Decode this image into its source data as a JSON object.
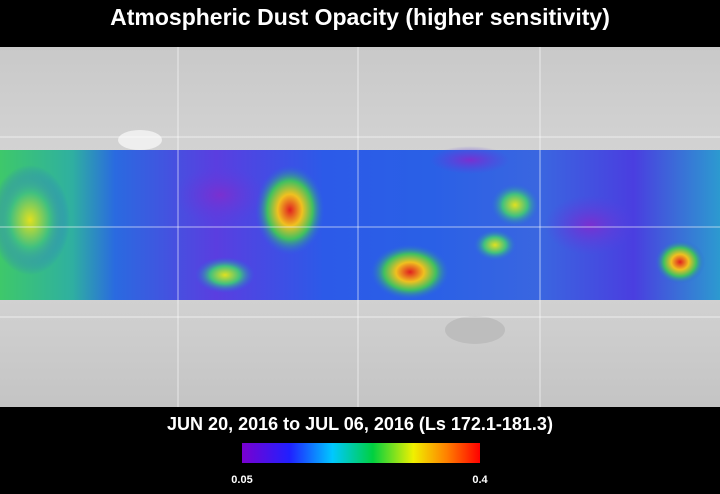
{
  "title": "Atmospheric Dust Opacity (higher sensitivity)",
  "subtitle": "JUN 20, 2016 to JUL 06, 2016 (Ls 172.1-181.3)",
  "colorbar": {
    "min": 0.05,
    "max": 0.4
  }
}
